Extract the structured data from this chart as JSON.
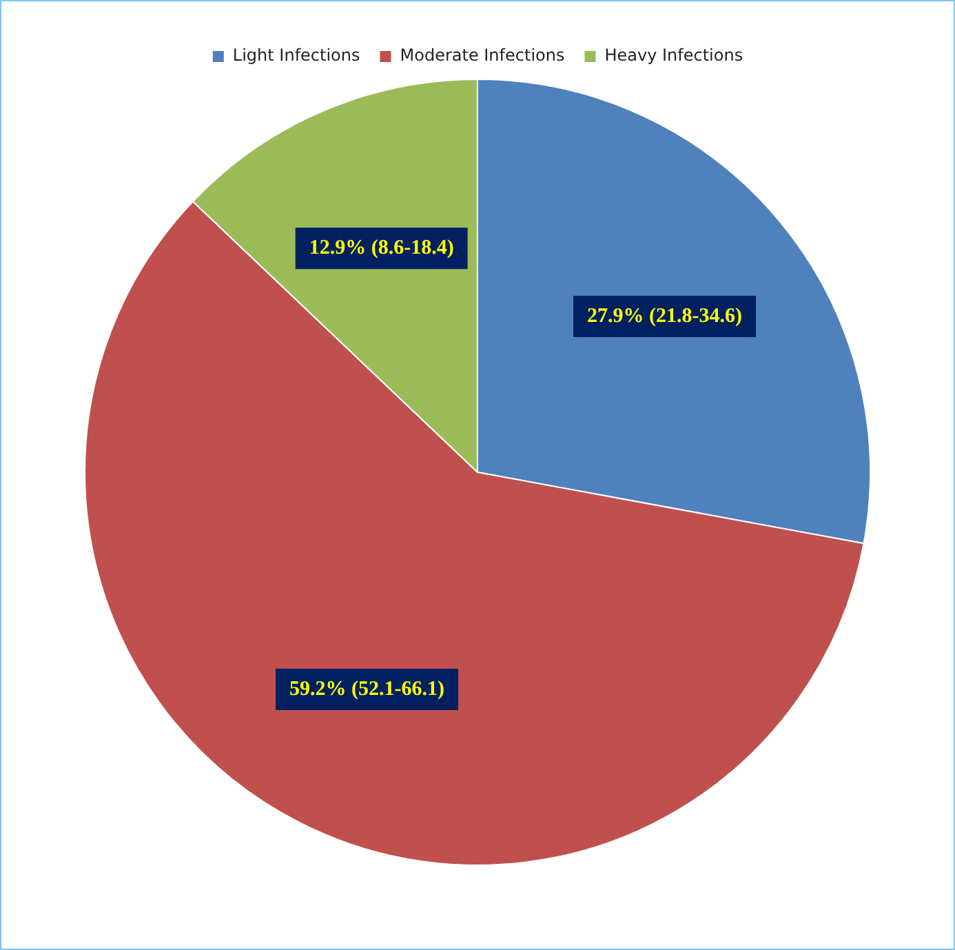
{
  "chart_data": {
    "type": "pie",
    "categories": [
      "Light Infections",
      "Moderate Infections",
      "Heavy Infections"
    ],
    "values": [
      27.9,
      59.2,
      12.9
    ],
    "colors": [
      "#4f81bd",
      "#c0504d",
      "#9bbb59"
    ],
    "value_labels": [
      "27.9% (21.8-34.6)",
      "59.2% (52.1-66.1)",
      "12.9% (8.6-18.4)"
    ],
    "legend": "top"
  }
}
